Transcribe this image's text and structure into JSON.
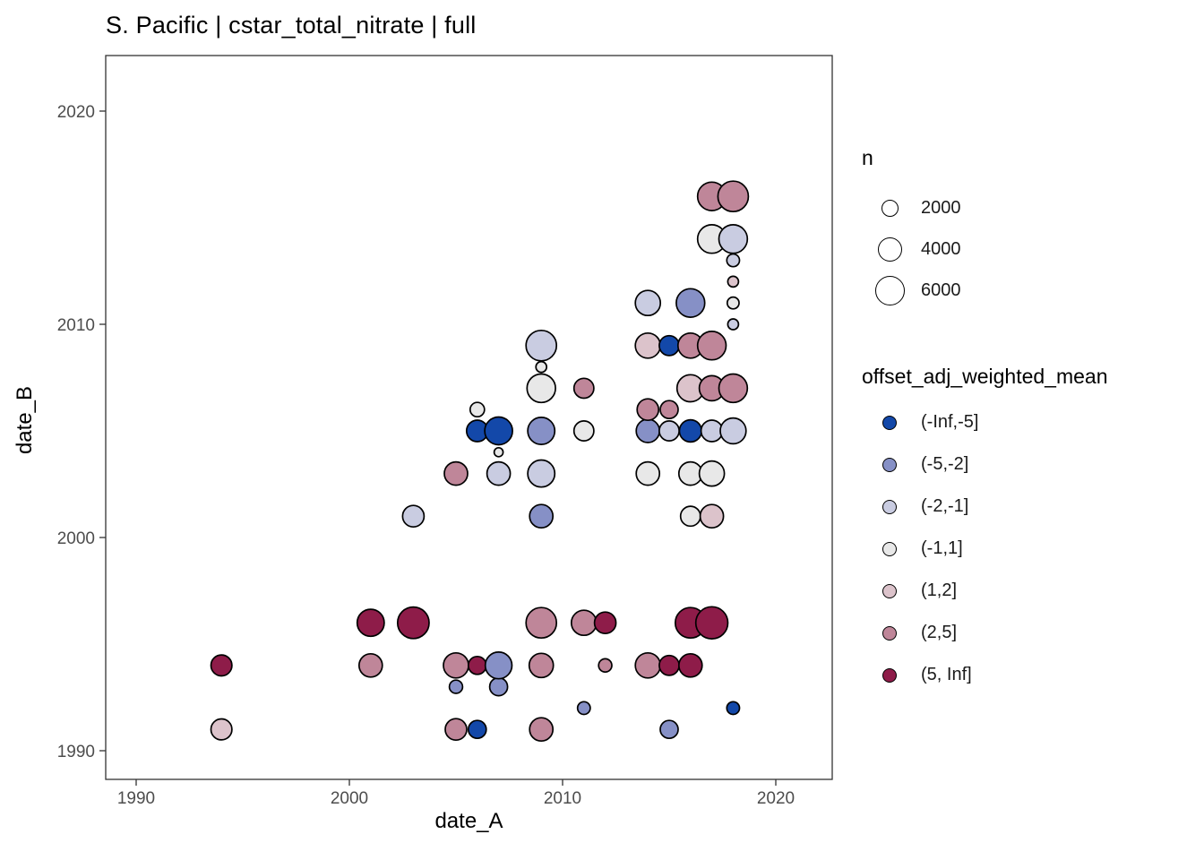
{
  "title": "S. Pacific | cstar_total_nitrate | full",
  "chart_data": {
    "type": "scatter",
    "title": "S. Pacific | cstar_total_nitrate | full",
    "xlabel": "date_A",
    "ylabel": "date_B",
    "x_ticks": [
      1990,
      2000,
      2010,
      2020
    ],
    "y_ticks": [
      1990,
      2000,
      2010,
      2020
    ],
    "xlim": [
      1988.5,
      2022.6
    ],
    "ylim": [
      1988.6,
      2022.6
    ],
    "grid": false,
    "background": "#ffffff",
    "point_outline": "#000000",
    "size_legend": {
      "title": "n",
      "values": [
        2000,
        4000,
        6000
      ]
    },
    "color_legend": {
      "title": "offset_adj_weighted_mean",
      "bins": [
        {
          "label": "(-Inf,-5]",
          "color": "#1348A9"
        },
        {
          "label": "(-5,-2]",
          "color": "#8690C6"
        },
        {
          "label": "(-2,-1]",
          "color": "#C9CCE1"
        },
        {
          "label": "(-1,1]",
          "color": "#E8E8E8"
        },
        {
          "label": "(1,2]",
          "color": "#DCC3CB"
        },
        {
          "label": "(2,5]",
          "color": "#BF8699"
        },
        {
          "label": "(5, Inf]",
          "color": "#8E1C49"
        }
      ]
    },
    "points": [
      {
        "x": 1994,
        "y": 1991,
        "bin": "(1,2]",
        "n": 3000
      },
      {
        "x": 1994,
        "y": 1994,
        "bin": "(5, Inf]",
        "n": 3000
      },
      {
        "x": 2001,
        "y": 1994,
        "bin": "(2,5]",
        "n": 3700
      },
      {
        "x": 2001,
        "y": 1996,
        "bin": "(5, Inf]",
        "n": 5000
      },
      {
        "x": 2003,
        "y": 1996,
        "bin": "(5, Inf]",
        "n": 6800
      },
      {
        "x": 2003,
        "y": 2001,
        "bin": "(-2,-1]",
        "n": 3200
      },
      {
        "x": 2005,
        "y": 1991,
        "bin": "(2,5]",
        "n": 3200
      },
      {
        "x": 2005,
        "y": 1993,
        "bin": "(-5,-2]",
        "n": 1200
      },
      {
        "x": 2005,
        "y": 1994,
        "bin": "(2,5]",
        "n": 4300
      },
      {
        "x": 2005,
        "y": 2003,
        "bin": "(2,5]",
        "n": 3700
      },
      {
        "x": 2006,
        "y": 1991,
        "bin": "(-Inf,-5]",
        "n": 2200
      },
      {
        "x": 2006,
        "y": 1994,
        "bin": "(5, Inf]",
        "n": 2200
      },
      {
        "x": 2006,
        "y": 2005,
        "bin": "(-Inf,-5]",
        "n": 3200
      },
      {
        "x": 2006,
        "y": 2006,
        "bin": "(-1,1]",
        "n": 1400
      },
      {
        "x": 2007,
        "y": 1993,
        "bin": "(-5,-2]",
        "n": 2200
      },
      {
        "x": 2007,
        "y": 1994,
        "bin": "(-5,-2]",
        "n": 4900
      },
      {
        "x": 2007,
        "y": 2003,
        "bin": "(-2,-1]",
        "n": 3700
      },
      {
        "x": 2007,
        "y": 2004,
        "bin": "(-1,1]",
        "n": 550
      },
      {
        "x": 2007,
        "y": 2005,
        "bin": "(-Inf,-5]",
        "n": 5300
      },
      {
        "x": 2009,
        "y": 1991,
        "bin": "(2,5]",
        "n": 3700
      },
      {
        "x": 2009,
        "y": 1994,
        "bin": "(2,5]",
        "n": 4000
      },
      {
        "x": 2009,
        "y": 1996,
        "bin": "(2,5]",
        "n": 6400
      },
      {
        "x": 2009,
        "y": 2001,
        "bin": "(-5,-2]",
        "n": 3700
      },
      {
        "x": 2009,
        "y": 2003,
        "bin": "(-2,-1]",
        "n": 5000
      },
      {
        "x": 2009,
        "y": 2005,
        "bin": "(-5,-2]",
        "n": 5000
      },
      {
        "x": 2009,
        "y": 2007,
        "bin": "(-1,1]",
        "n": 5600
      },
      {
        "x": 2009,
        "y": 2008,
        "bin": "(-1,1]",
        "n": 800
      },
      {
        "x": 2009,
        "y": 2009,
        "bin": "(-2,-1]",
        "n": 6400
      },
      {
        "x": 2011,
        "y": 1992,
        "bin": "(-5,-2]",
        "n": 1100
      },
      {
        "x": 2011,
        "y": 1996,
        "bin": "(2,5]",
        "n": 4300
      },
      {
        "x": 2011,
        "y": 2005,
        "bin": "(-1,1]",
        "n": 2700
      },
      {
        "x": 2011,
        "y": 2007,
        "bin": "(2,5]",
        "n": 2700
      },
      {
        "x": 2012,
        "y": 1994,
        "bin": "(2,5]",
        "n": 1200
      },
      {
        "x": 2012,
        "y": 1996,
        "bin": "(5, Inf]",
        "n": 3200
      },
      {
        "x": 2014,
        "y": 1994,
        "bin": "(2,5]",
        "n": 4300
      },
      {
        "x": 2014,
        "y": 2003,
        "bin": "(-1,1]",
        "n": 3700
      },
      {
        "x": 2014,
        "y": 2005,
        "bin": "(-5,-2]",
        "n": 3700
      },
      {
        "x": 2014,
        "y": 2006,
        "bin": "(2,5]",
        "n": 3200
      },
      {
        "x": 2014,
        "y": 2009,
        "bin": "(1,2]",
        "n": 4300
      },
      {
        "x": 2014,
        "y": 2011,
        "bin": "(-2,-1]",
        "n": 4300
      },
      {
        "x": 2015,
        "y": 1991,
        "bin": "(-5,-2]",
        "n": 2200
      },
      {
        "x": 2015,
        "y": 1994,
        "bin": "(5, Inf]",
        "n": 2700
      },
      {
        "x": 2015,
        "y": 2005,
        "bin": "(-2,-1]",
        "n": 2700
      },
      {
        "x": 2015,
        "y": 2006,
        "bin": "(2,5]",
        "n": 2200
      },
      {
        "x": 2015,
        "y": 2009,
        "bin": "(-Inf,-5]",
        "n": 2700
      },
      {
        "x": 2016,
        "y": 1994,
        "bin": "(5, Inf]",
        "n": 3700
      },
      {
        "x": 2016,
        "y": 1996,
        "bin": "(5, Inf]",
        "n": 6400
      },
      {
        "x": 2016,
        "y": 2001,
        "bin": "(-1,1]",
        "n": 2700
      },
      {
        "x": 2016,
        "y": 2003,
        "bin": "(-1,1]",
        "n": 3700
      },
      {
        "x": 2016,
        "y": 2005,
        "bin": "(-Inf,-5]",
        "n": 3400
      },
      {
        "x": 2016,
        "y": 2007,
        "bin": "(1,2]",
        "n": 5000
      },
      {
        "x": 2016,
        "y": 2009,
        "bin": "(2,5]",
        "n": 4300
      },
      {
        "x": 2016,
        "y": 2011,
        "bin": "(-5,-2]",
        "n": 5600
      },
      {
        "x": 2017,
        "y": 1996,
        "bin": "(5, Inf]",
        "n": 7100
      },
      {
        "x": 2017,
        "y": 2001,
        "bin": "(1,2]",
        "n": 3700
      },
      {
        "x": 2017,
        "y": 2003,
        "bin": "(-1,1]",
        "n": 4300
      },
      {
        "x": 2017,
        "y": 2005,
        "bin": "(-2,-1]",
        "n": 3200
      },
      {
        "x": 2017,
        "y": 2007,
        "bin": "(2,5]",
        "n": 4300
      },
      {
        "x": 2017,
        "y": 2009,
        "bin": "(2,5]",
        "n": 5600
      },
      {
        "x": 2017,
        "y": 2014,
        "bin": "(-1,1]",
        "n": 5600
      },
      {
        "x": 2017,
        "y": 2016,
        "bin": "(2,5]",
        "n": 5600
      },
      {
        "x": 2018,
        "y": 1992,
        "bin": "(-Inf,-5]",
        "n": 1100
      },
      {
        "x": 2018,
        "y": 2005,
        "bin": "(-2,-1]",
        "n": 4600
      },
      {
        "x": 2018,
        "y": 2007,
        "bin": "(2,5]",
        "n": 5600
      },
      {
        "x": 2018,
        "y": 2010,
        "bin": "(-2,-1]",
        "n": 800
      },
      {
        "x": 2018,
        "y": 2011,
        "bin": "(-1,1]",
        "n": 950
      },
      {
        "x": 2018,
        "y": 2012,
        "bin": "(1,2]",
        "n": 800
      },
      {
        "x": 2018,
        "y": 2013,
        "bin": "(-2,-1]",
        "n": 1100
      },
      {
        "x": 2018,
        "y": 2014,
        "bin": "(-2,-1]",
        "n": 5600
      },
      {
        "x": 2018,
        "y": 2016,
        "bin": "(2,5]",
        "n": 6400
      }
    ]
  }
}
